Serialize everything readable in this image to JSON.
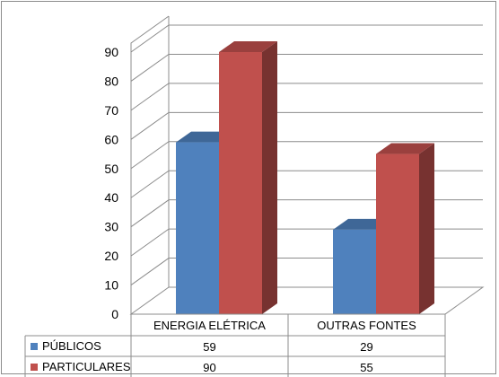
{
  "chart_data": {
    "type": "bar",
    "style": "3d-clustered-column-with-data-table",
    "categories": [
      "ENERGIA ELÉTRICA",
      "OUTRAS FONTES"
    ],
    "series": [
      {
        "name": "PÚBLICOS",
        "values": [
          59,
          29
        ],
        "color": "#4f81bd"
      },
      {
        "name": "PARTICULARES",
        "values": [
          90,
          55
        ],
        "color": "#c0504d"
      }
    ],
    "y_ticks": [
      "0",
      "10",
      "20",
      "30",
      "40",
      "50",
      "60",
      "70",
      "80",
      "90"
    ],
    "ylim": [
      0,
      90
    ],
    "grid": true,
    "legend": "data-table-left"
  }
}
